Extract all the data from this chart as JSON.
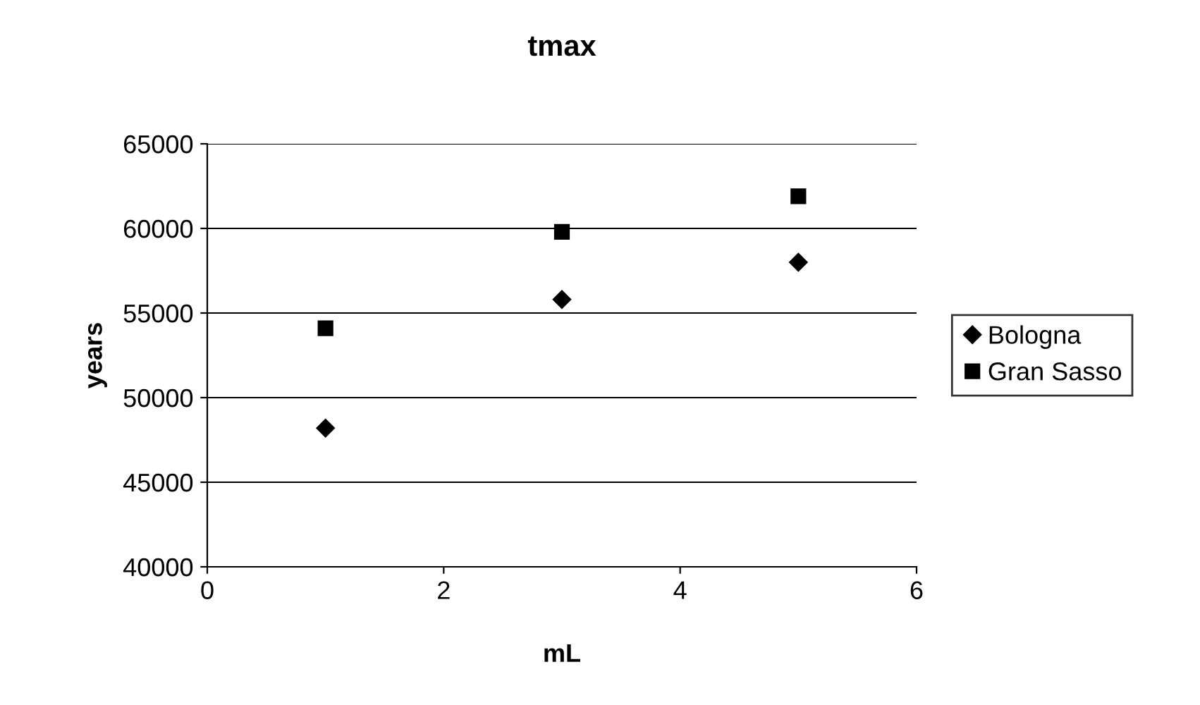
{
  "chart_data": {
    "type": "scatter",
    "title": "tmax",
    "xlabel": "mL",
    "ylabel": "years",
    "xlim": [
      0,
      6
    ],
    "xticks": [
      0,
      2,
      4,
      6
    ],
    "ylim": [
      40000,
      65000
    ],
    "yticks": [
      40000,
      45000,
      50000,
      55000,
      60000,
      65000
    ],
    "grid": "y",
    "legend": "right",
    "series": [
      {
        "name": "Bologna",
        "color": "#000000",
        "marker": "diamond",
        "x": [
          1,
          3,
          5
        ],
        "values": [
          48200,
          55800,
          58000
        ]
      },
      {
        "name": "Gran Sasso",
        "color": "#000000",
        "marker": "square",
        "x": [
          1,
          3,
          5
        ],
        "values": [
          54100,
          59800,
          61900
        ]
      }
    ]
  }
}
